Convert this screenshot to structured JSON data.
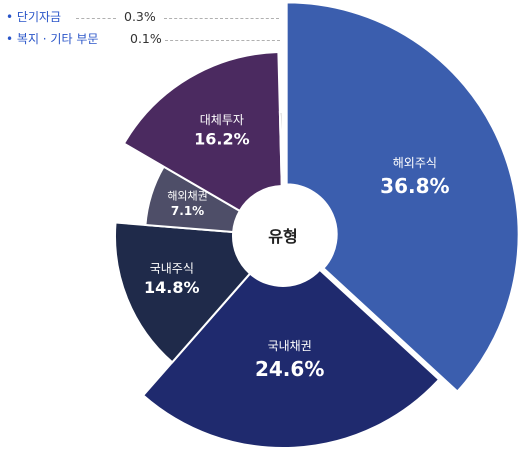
{
  "chart_data": {
    "type": "pie",
    "center_label": "유형",
    "slices": [
      {
        "name": "해외주식",
        "value": 36.8,
        "label": "36.8%",
        "color": "#3b5eae"
      },
      {
        "name": "국내채권",
        "value": 24.6,
        "label": "24.6%",
        "color": "#1f2a6e"
      },
      {
        "name": "국내주식",
        "value": 14.8,
        "label": "14.8%",
        "color": "#1f2a4a"
      },
      {
        "name": "해외채권",
        "value": 7.1,
        "label": "7.1%",
        "color": "#4e4e68"
      },
      {
        "name": "대체투자",
        "value": 16.2,
        "label": "16.2%",
        "color": "#4b2a60"
      },
      {
        "name": "단기자금",
        "value": 0.3,
        "label": "0.3%",
        "color": "#1a1a1a"
      },
      {
        "name": "복지 · 기타 부문",
        "value": 0.1,
        "label": "0.1%",
        "color": "#aab0bc"
      }
    ],
    "callouts": [
      {
        "name": "단기자금",
        "value": "0.3%"
      },
      {
        "name": "복지 · 기타 부문",
        "value": "0.1%"
      }
    ]
  }
}
